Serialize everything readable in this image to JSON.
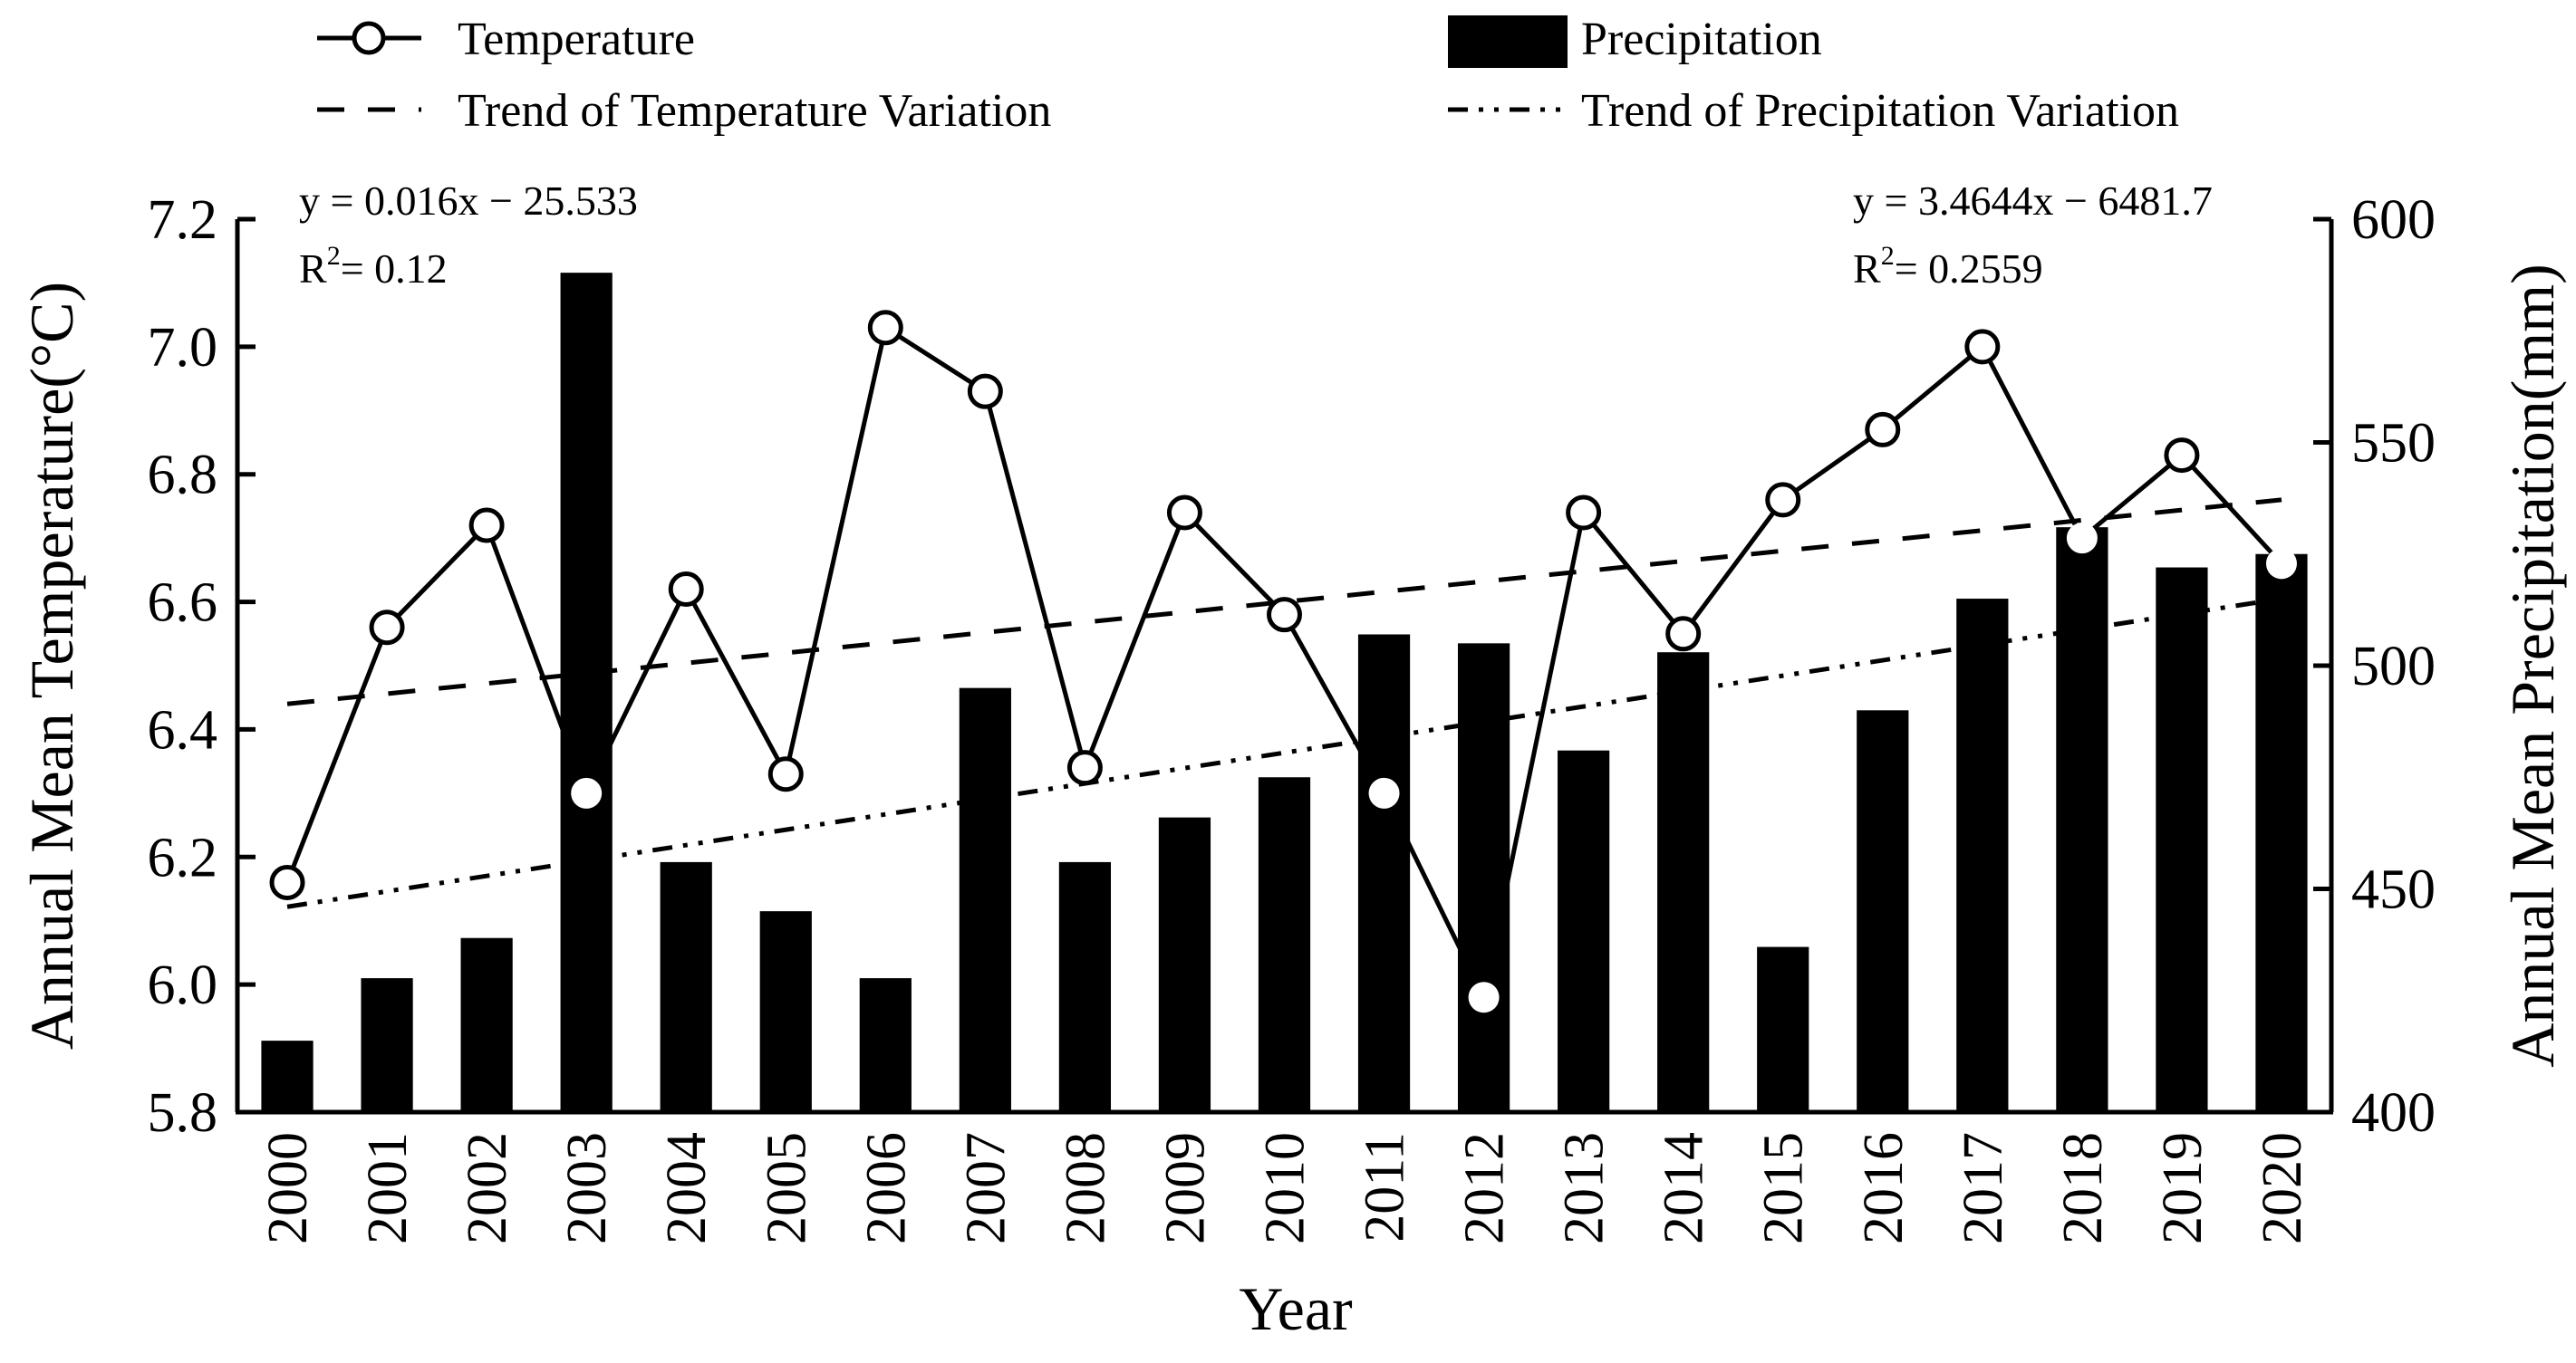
{
  "chart_data": {
    "type": "bar+line",
    "title": "",
    "xlabel": "Year",
    "ylabel_left": "Annual Mean Temperature(°C)",
    "ylabel_right": "Annual Mean Precipitation(mm)",
    "ylim_left": [
      5.8,
      7.2
    ],
    "ylim_right": [
      400,
      600
    ],
    "yticks_left": [
      "5.8",
      "6.0",
      "6.2",
      "6.4",
      "6.6",
      "6.8",
      "7.0",
      "7.2"
    ],
    "yticks_right": [
      "400",
      "450",
      "500",
      "550",
      "600"
    ],
    "categories": [
      "2000",
      "2001",
      "2002",
      "2003",
      "2004",
      "2005",
      "2006",
      "2007",
      "2008",
      "2009",
      "2010",
      "2011",
      "2012",
      "2013",
      "2014",
      "2015",
      "2016",
      "2017",
      "2018",
      "2019",
      "2020"
    ],
    "series": [
      {
        "name": "Temperature",
        "type": "line",
        "axis": "left",
        "values": [
          6.16,
          6.56,
          6.72,
          6.3,
          6.62,
          6.33,
          7.03,
          6.93,
          6.34,
          6.74,
          6.58,
          6.3,
          5.98,
          6.74,
          6.55,
          6.76,
          6.87,
          7.0,
          6.7,
          6.83,
          6.66
        ]
      },
      {
        "name": "Precipitation",
        "type": "bar",
        "axis": "right",
        "values": [
          416,
          430,
          439,
          588,
          456,
          445,
          430,
          495,
          456,
          466,
          475,
          507,
          505,
          481,
          503,
          437,
          490,
          515,
          531,
          522,
          525
        ]
      }
    ],
    "trends": [
      {
        "name": "Trend of Temperature Variation",
        "axis": "left",
        "equation": "y = 0.016x − 25.533",
        "r2_label": "R",
        "r2_sup": "2",
        "r2_value": "= 0.12",
        "start_value": 6.44,
        "end_value": 6.76
      },
      {
        "name": "Trend of Precipitation Variation",
        "axis": "right",
        "equation": "y = 3.4644x − 6481.7",
        "r2_label": "R",
        "r2_sup": "2",
        "r2_value": "= 0.2559",
        "start_value": 446,
        "end_value": 515
      }
    ],
    "legend": [
      {
        "label": "Temperature",
        "symbol": "line-circle"
      },
      {
        "label": "Precipitation",
        "symbol": "bar"
      },
      {
        "label": "Trend of Temperature Variation",
        "symbol": "dash"
      },
      {
        "label": "Trend of Precipitation Variation",
        "symbol": "dash-dot-dot"
      }
    ],
    "colors": {
      "ink": "#000000",
      "background": "#ffffff"
    }
  }
}
